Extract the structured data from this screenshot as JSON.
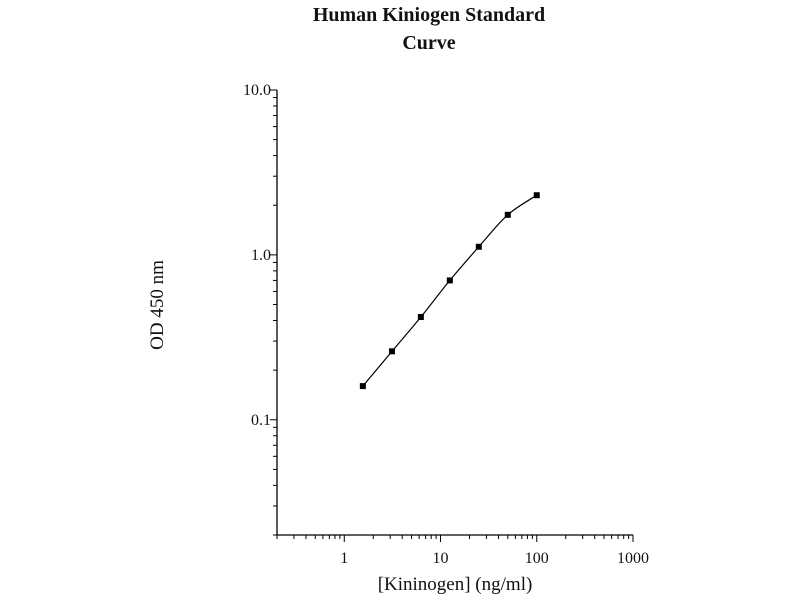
{
  "chart_data": {
    "type": "scatter",
    "title": [
      "Human Kiniogen Standard",
      "Curve"
    ],
    "xlabel": "[Kininogen] (ng/ml)",
    "ylabel": "OD 450 nm",
    "xscale": "log",
    "yscale": "log",
    "xlim": [
      0.2,
      1000
    ],
    "ylim": [
      0.02,
      10
    ],
    "xticks": [
      {
        "value": 1,
        "label": "1"
      },
      {
        "value": 10,
        "label": "10"
      },
      {
        "value": 100,
        "label": "100"
      },
      {
        "value": 1000,
        "label": "1000"
      }
    ],
    "yticks": [
      {
        "value": 0.1,
        "label": "0.1"
      },
      {
        "value": 1,
        "label": "1.0"
      },
      {
        "value": 10,
        "label": "10.0"
      }
    ],
    "series": [
      {
        "fit_line": true,
        "x": [
          1.56,
          3.13,
          6.25,
          12.5,
          25,
          50,
          100
        ],
        "y": [
          0.16,
          0.26,
          0.42,
          0.7,
          1.12,
          1.75,
          2.3
        ]
      }
    ],
    "grid": false,
    "legend": "none"
  }
}
